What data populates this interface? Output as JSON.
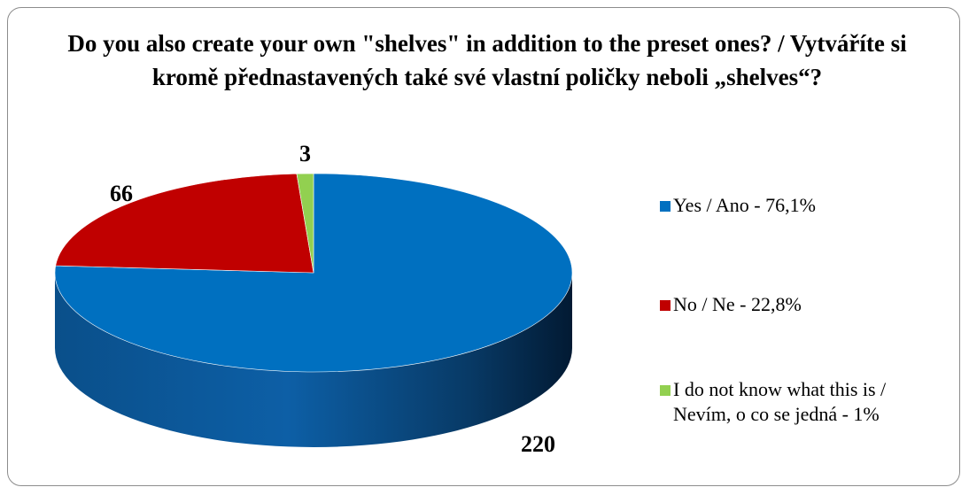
{
  "chart_data": {
    "type": "pie",
    "title": "Do you also create your own \"shelves\" in addition to the preset ones? / Vytváříte si kromě přednastavených také své vlastní poličky neboli „shelves“?",
    "slices": [
      {
        "label": "Yes / Ano - 76,1%",
        "value": 220,
        "value_label": "220",
        "color": "#0070c0"
      },
      {
        "label": "No / Ne - 22,8%",
        "value": 66,
        "value_label": "66",
        "color": "#c00000"
      },
      {
        "label": "I do not know what this is / Nevím, o co se jedná - 1%",
        "value": 3,
        "value_label": "3",
        "color": "#92d050"
      }
    ],
    "legend_position": "right",
    "style": "3d"
  }
}
